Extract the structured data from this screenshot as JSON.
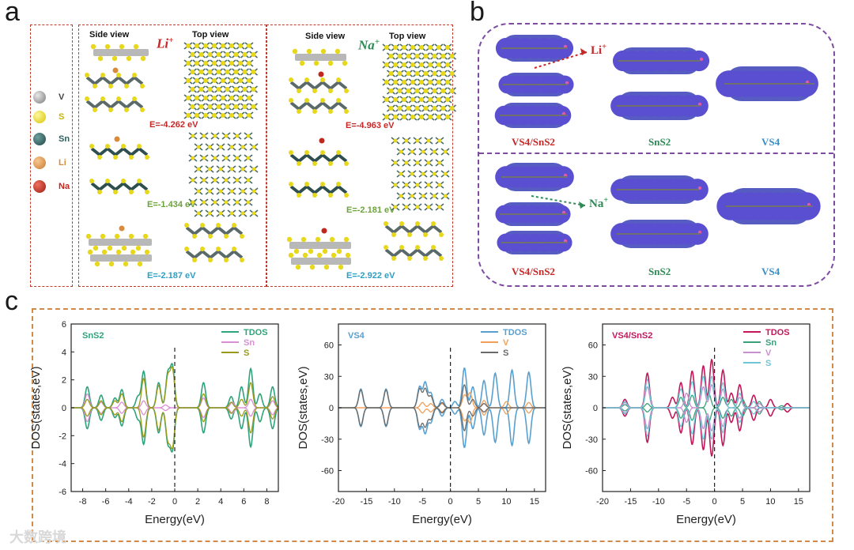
{
  "panel_labels": {
    "a": "a",
    "b": "b",
    "c": "c"
  },
  "panel_a": {
    "legend": [
      {
        "symbol": "V",
        "color": "#9a9a9a"
      },
      {
        "symbol": "S",
        "color": "#e8d81c"
      },
      {
        "symbol": "Sn",
        "color": "#2f5d5d"
      },
      {
        "symbol": "Li",
        "color": "#e39a4e"
      },
      {
        "symbol": "Na",
        "color": "#c0281e"
      }
    ],
    "li_group": {
      "ion": "Li",
      "side_view": "Side view",
      "top_view": "Top view",
      "energies": [
        "E=-4.262 eV",
        "E=-1.434 eV",
        "E=-2.187 eV"
      ]
    },
    "na_group": {
      "ion": "Na",
      "side_view": "Side view",
      "top_view": "Top view",
      "energies": [
        "E=-4.963 eV",
        "E=-2.181 eV",
        "E=-2.922 eV"
      ]
    },
    "energy_colors": [
      "#c62828",
      "#6ca33a",
      "#2e9fc4"
    ]
  },
  "panel_b": {
    "top_row": {
      "ion": "Li",
      "labels": [
        "VS4/SnS2",
        "SnS2",
        "VS4"
      ]
    },
    "bottom_row": {
      "ion": "Na",
      "labels": [
        "VS4/SnS2",
        "SnS2",
        "VS4"
      ]
    },
    "label_colors": [
      "#c62828",
      "#2e8b57",
      "#3a8fc4"
    ]
  },
  "chart_data": [
    {
      "type": "line",
      "title": "SnS2",
      "xlabel": "Energy(eV)",
      "ylabel": "DOS(states,eV)",
      "xlim": [
        -9,
        9
      ],
      "ylim": [
        -6,
        6
      ],
      "xticks": [
        -8,
        -6,
        -4,
        -2,
        0,
        2,
        4,
        6,
        8
      ],
      "yticks": [
        -6,
        -4,
        -2,
        0,
        2,
        4,
        6
      ],
      "fermi_level": 0,
      "series": [
        {
          "name": "TDOS",
          "color": "#2fa47a",
          "peaks": [
            [
              -7.6,
              1.5
            ],
            [
              -6.4,
              0.9
            ],
            [
              -5.2,
              0.7
            ],
            [
              -4.6,
              1.3
            ],
            [
              -3.2,
              0.8
            ],
            [
              -2.7,
              2.6
            ],
            [
              -1.4,
              1.8
            ],
            [
              -0.6,
              2.4
            ],
            [
              -0.2,
              2.9
            ],
            [
              2.5,
              1.8
            ],
            [
              4.9,
              0.8
            ],
            [
              5.8,
              1.5
            ],
            [
              6.6,
              2.8
            ],
            [
              7.4,
              1.0
            ],
            [
              8.5,
              1.5
            ]
          ]
        },
        {
          "name": "Sn",
          "color": "#d98fd6",
          "peaks": [
            [
              -7.6,
              1.0
            ],
            [
              -6.4,
              0.4
            ],
            [
              -4.6,
              0.4
            ],
            [
              -2.7,
              0.5
            ],
            [
              -0.8,
              0.2
            ],
            [
              2.5,
              0.7
            ],
            [
              5.0,
              0.4
            ],
            [
              6.6,
              0.6
            ],
            [
              8.5,
              0.5
            ]
          ]
        },
        {
          "name": "S",
          "color": "#9a9a1a",
          "peaks": [
            [
              -7.6,
              0.6
            ],
            [
              -6.4,
              0.5
            ],
            [
              -5.2,
              0.5
            ],
            [
              -4.6,
              1.0
            ],
            [
              -2.7,
              2.1
            ],
            [
              -1.4,
              1.6
            ],
            [
              -0.6,
              2.2
            ],
            [
              -0.2,
              2.7
            ],
            [
              2.5,
              1.0
            ],
            [
              4.9,
              0.4
            ],
            [
              5.8,
              0.6
            ],
            [
              6.6,
              1.8
            ],
            [
              8.5,
              0.8
            ]
          ]
        }
      ]
    },
    {
      "type": "line",
      "title": "VS4",
      "xlabel": "Energy(eV)",
      "ylabel": "DOS(states,eV)",
      "xlim": [
        -20,
        17
      ],
      "ylim": [
        -80,
        80
      ],
      "xticks": [
        -20,
        -15,
        -10,
        -5,
        0,
        5,
        10,
        15
      ],
      "yticks": [
        -60,
        -30,
        0,
        30,
        60
      ],
      "fermi_level": 0,
      "series": [
        {
          "name": "TDOS",
          "color": "#5aa0cf",
          "peaks": [
            [
              -16,
              18
            ],
            [
              -11.5,
              18
            ],
            [
              -5.5,
              20
            ],
            [
              -4.5,
              24
            ],
            [
              -3.5,
              14
            ],
            [
              -1.5,
              8
            ],
            [
              0.8,
              6
            ],
            [
              2.5,
              38
            ],
            [
              4,
              20
            ],
            [
              6,
              26
            ],
            [
              8,
              33
            ],
            [
              11,
              36
            ],
            [
              14,
              34
            ]
          ]
        },
        {
          "name": "V",
          "color": "#f0a05a",
          "peaks": [
            [
              -5,
              5
            ],
            [
              -3.5,
              4
            ],
            [
              -1.5,
              4
            ],
            [
              2.5,
              12
            ],
            [
              3.5,
              14
            ],
            [
              6,
              7
            ],
            [
              10,
              6
            ],
            [
              14,
              5
            ]
          ]
        },
        {
          "name": "S",
          "color": "#6a6a6a",
          "peaks": [
            [
              -16,
              17
            ],
            [
              -11.5,
              17
            ],
            [
              -5.5,
              18
            ],
            [
              -4.5,
              18
            ],
            [
              -3.5,
              11
            ],
            [
              -1.5,
              5
            ],
            [
              2.5,
              22
            ],
            [
              4,
              8
            ],
            [
              6,
              4
            ]
          ]
        }
      ]
    },
    {
      "type": "line",
      "title": "VS4/SnS2",
      "xlabel": "Energy(eV)",
      "ylabel": "DOS(states,eV)",
      "xlim": [
        -20,
        17
      ],
      "ylim": [
        -80,
        80
      ],
      "xticks": [
        -20,
        -15,
        -10,
        -5,
        0,
        5,
        10,
        15
      ],
      "yticks": [
        -60,
        -30,
        0,
        30,
        60
      ],
      "fermi_level": 0,
      "series": [
        {
          "name": "TDOS",
          "color": "#c2185b",
          "peaks": [
            [
              -16,
              8
            ],
            [
              -12,
              33
            ],
            [
              -7.5,
              10
            ],
            [
              -6,
              24
            ],
            [
              -4,
              35
            ],
            [
              -2,
              40
            ],
            [
              -0.5,
              46
            ],
            [
              1.5,
              36
            ],
            [
              3,
              14
            ],
            [
              4.5,
              22
            ],
            [
              7,
              12
            ],
            [
              10,
              8
            ],
            [
              13,
              4
            ]
          ]
        },
        {
          "name": "Sn",
          "color": "#3aa07a",
          "peaks": [
            [
              -16,
              3
            ],
            [
              -12,
              4
            ],
            [
              -6,
              10
            ],
            [
              -4,
              12
            ],
            [
              -1,
              13
            ],
            [
              1.5,
              10
            ],
            [
              3,
              8
            ],
            [
              5,
              8
            ],
            [
              8,
              6
            ],
            [
              12,
              2
            ]
          ]
        },
        {
          "name": "V",
          "color": "#c98fd0",
          "peaks": [
            [
              -16,
              5
            ],
            [
              -12,
              20
            ],
            [
              -5,
              14
            ],
            [
              -2,
              20
            ],
            [
              -0.5,
              22
            ],
            [
              1.5,
              18
            ],
            [
              4.5,
              10
            ],
            [
              8,
              4
            ]
          ]
        },
        {
          "name": "S",
          "color": "#6fc6d6",
          "peaks": [
            [
              -16,
              6
            ],
            [
              -12,
              27
            ],
            [
              -6,
              18
            ],
            [
              -4,
              25
            ],
            [
              -2,
              30
            ],
            [
              -0.5,
              30
            ],
            [
              1.5,
              24
            ],
            [
              4.5,
              14
            ],
            [
              7,
              6
            ]
          ]
        }
      ]
    }
  ],
  "watermark": "大数跨境"
}
